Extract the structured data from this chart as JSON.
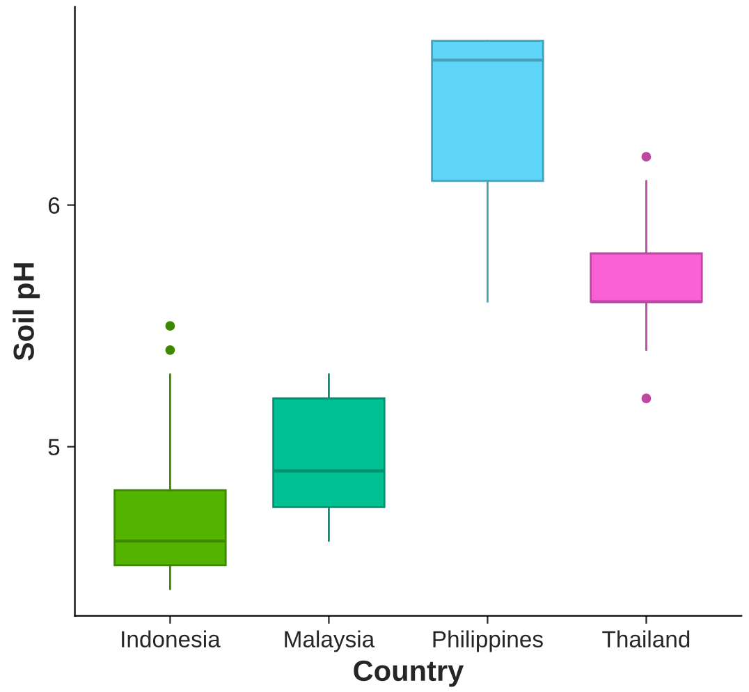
{
  "chart_data": {
    "type": "box",
    "xlabel": "Country",
    "ylabel": "Soil pH",
    "categories": [
      "Indonesia",
      "Malaysia",
      "Philippines",
      "Thailand"
    ],
    "colors": [
      "#53b400",
      "#00c094",
      "#5fd6f7",
      "#fb61d7"
    ],
    "boxes": [
      {
        "low": 4.41,
        "q1": 4.51,
        "median": 4.61,
        "q3": 4.82,
        "high": 5.3,
        "outliers": [
          5.4,
          5.5
        ]
      },
      {
        "low": 4.61,
        "q1": 4.75,
        "median": 4.9,
        "q3": 5.2,
        "high": 5.3
      },
      {
        "low": 5.6,
        "q1": 6.1,
        "median": 6.6,
        "q3": 6.68,
        "high": 6.68
      },
      {
        "low": 5.4,
        "q1": 5.6,
        "median": 5.6,
        "q3": 5.8,
        "high": 6.1,
        "outliers": [
          6.2,
          5.2
        ]
      }
    ],
    "ylim": [
      4.3,
      6.82
    ],
    "yticks": [
      5,
      6
    ],
    "grid": false,
    "legend": false
  }
}
